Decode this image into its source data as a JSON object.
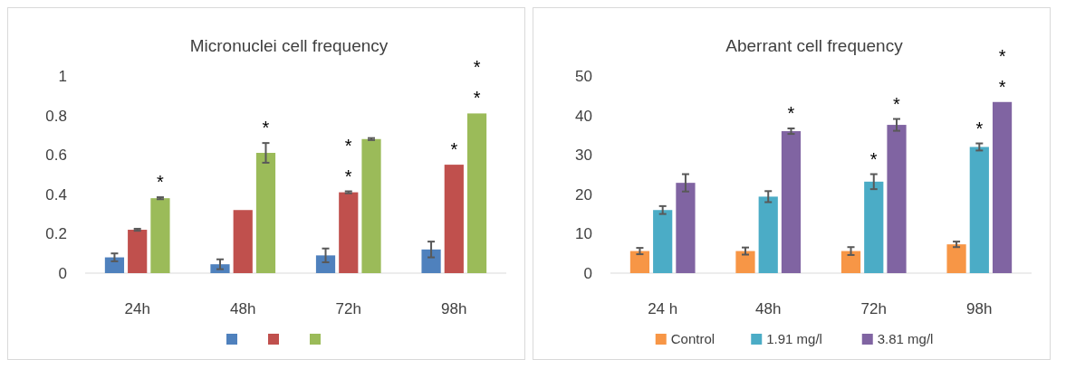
{
  "chart_data": [
    {
      "type": "bar",
      "title": "Micronuclei cell frequency",
      "categories": [
        "24h",
        "48h",
        "72h",
        "98h"
      ],
      "ylim": [
        0,
        1
      ],
      "yticks": [
        0,
        0.2,
        0.4,
        0.6,
        0.8,
        1
      ],
      "grid": false,
      "series": [
        {
          "color": "#4f81bd",
          "values": [
            0.08,
            0.045,
            0.09,
            0.12
          ],
          "errors": [
            0.02,
            0.025,
            0.035,
            0.04
          ],
          "value_labels": [
            null,
            null,
            null,
            null
          ]
        },
        {
          "color": "#c0504d",
          "values": [
            0.22,
            0.32,
            0.41,
            0.55
          ],
          "errors": [
            0.005,
            null,
            0.005,
            null
          ],
          "value_labels": [
            null,
            null,
            "*\n*",
            "*"
          ]
        },
        {
          "color": "#9bbb59",
          "values": [
            0.38,
            0.61,
            0.68,
            0.81
          ],
          "errors": [
            0.005,
            0.05,
            0.005,
            null
          ],
          "value_labels": [
            "*",
            "*",
            null,
            "*\n*"
          ]
        }
      ]
    },
    {
      "type": "bar",
      "title": "Aberrant cell frequency",
      "categories": [
        "24 h",
        "48h",
        "72h",
        "98h"
      ],
      "ylim": [
        0,
        50
      ],
      "yticks": [
        0,
        10,
        20,
        30,
        40,
        50
      ],
      "grid": false,
      "legend": "bottom",
      "series": [
        {
          "name": "Control",
          "color": "#f79646",
          "values": [
            5.6,
            5.6,
            5.6,
            7.3
          ],
          "errors": [
            0.8,
            0.9,
            1,
            0.7
          ],
          "value_labels": [
            null,
            null,
            null,
            null
          ]
        },
        {
          "name": "1.91 mg/l",
          "color": "#4bacc6",
          "values": [
            16.0,
            19.4,
            23.2,
            32.0
          ],
          "errors": [
            1,
            1.4,
            1.9,
            0.9
          ],
          "value_labels": [
            null,
            null,
            "*",
            "*"
          ]
        },
        {
          "name": "3.81 mg/l",
          "color": "#8064a2",
          "values": [
            22.9,
            36.0,
            37.6,
            43.4
          ],
          "errors": [
            2.2,
            0.7,
            1.5,
            null
          ],
          "value_labels": [
            null,
            "*",
            "*",
            "*\n*"
          ]
        }
      ]
    }
  ]
}
